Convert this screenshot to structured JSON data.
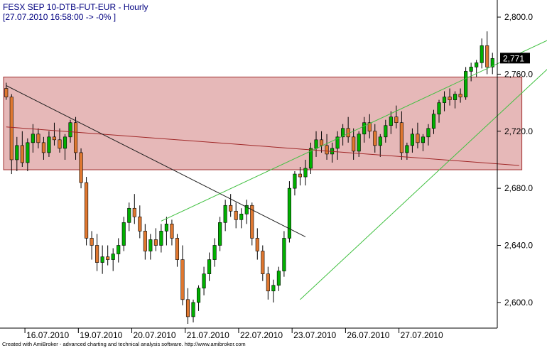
{
  "chart_data": {
    "type": "candlestick",
    "title": "FESX SEP 10-DTB-FUT-EUR - Hourly",
    "subtitle": "[27.07.2010 16:58:00 -> -0% ]",
    "footer": "Created with AmiBroker - advanced charting and technical analysis software. http://www.amibroker.com",
    "last_price_label": "2,771",
    "last_price": 2771,
    "ylim": [
      2582,
      2808
    ],
    "y_ticks": [
      {
        "value": 2600,
        "label": "2,600.0"
      },
      {
        "value": 2640,
        "label": "2,640.0"
      },
      {
        "value": 2680,
        "label": "2,680.0"
      },
      {
        "value": 2720,
        "label": "2,720.0"
      },
      {
        "value": 2760,
        "label": "2,760.0"
      },
      {
        "value": 2800,
        "label": "2,800.0"
      }
    ],
    "x_ticks": [
      "16.07.2010",
      "19.07.2010",
      "20.07.2010",
      "21.07.2010",
      "22.07.2010",
      "23.07.2010",
      "26.07.2010",
      "27.07.2010"
    ],
    "bars_per_day": 10,
    "candles": [
      [
        2750,
        2754,
        2742,
        2744
      ],
      [
        2744,
        2746,
        2690,
        2700
      ],
      [
        2700,
        2716,
        2692,
        2710
      ],
      [
        2710,
        2720,
        2695,
        2698
      ],
      [
        2698,
        2715,
        2692,
        2712
      ],
      [
        2712,
        2725,
        2705,
        2718
      ],
      [
        2718,
        2722,
        2708,
        2712
      ],
      [
        2712,
        2716,
        2700,
        2705
      ],
      [
        2705,
        2720,
        2702,
        2716
      ],
      [
        2716,
        2726,
        2710,
        2714
      ],
      [
        2714,
        2722,
        2705,
        2708
      ],
      [
        2708,
        2718,
        2700,
        2716
      ],
      [
        2716,
        2728,
        2712,
        2726
      ],
      [
        2726,
        2730,
        2700,
        2705
      ],
      [
        2705,
        2708,
        2680,
        2684
      ],
      [
        2684,
        2688,
        2640,
        2645
      ],
      [
        2645,
        2650,
        2630,
        2640
      ],
      [
        2640,
        2648,
        2622,
        2628
      ],
      [
        2628,
        2640,
        2620,
        2632
      ],
      [
        2632,
        2640,
        2626,
        2630
      ],
      [
        2630,
        2638,
        2622,
        2634
      ],
      [
        2634,
        2645,
        2628,
        2640
      ],
      [
        2640,
        2660,
        2636,
        2656
      ],
      [
        2656,
        2670,
        2650,
        2666
      ],
      [
        2666,
        2676,
        2655,
        2660
      ],
      [
        2660,
        2668,
        2645,
        2650
      ],
      [
        2650,
        2655,
        2630,
        2636
      ],
      [
        2636,
        2648,
        2630,
        2644
      ],
      [
        2644,
        2652,
        2636,
        2640
      ],
      [
        2640,
        2655,
        2635,
        2650
      ],
      [
        2650,
        2660,
        2640,
        2655
      ],
      [
        2655,
        2658,
        2640,
        2645
      ],
      [
        2645,
        2648,
        2625,
        2630
      ],
      [
        2630,
        2640,
        2598,
        2602
      ],
      [
        2602,
        2610,
        2585,
        2590
      ],
      [
        2590,
        2602,
        2586,
        2600
      ],
      [
        2600,
        2612,
        2594,
        2610
      ],
      [
        2610,
        2625,
        2605,
        2620
      ],
      [
        2620,
        2635,
        2615,
        2630
      ],
      [
        2630,
        2645,
        2625,
        2640
      ],
      [
        2640,
        2660,
        2636,
        2656
      ],
      [
        2656,
        2672,
        2650,
        2668
      ],
      [
        2668,
        2676,
        2660,
        2664
      ],
      [
        2664,
        2670,
        2652,
        2658
      ],
      [
        2658,
        2666,
        2652,
        2662
      ],
      [
        2662,
        2672,
        2655,
        2668
      ],
      [
        2668,
        2670,
        2640,
        2645
      ],
      [
        2645,
        2652,
        2630,
        2636
      ],
      [
        2636,
        2640,
        2615,
        2620
      ],
      [
        2620,
        2625,
        2602,
        2608
      ],
      [
        2608,
        2616,
        2600,
        2612
      ],
      [
        2612,
        2625,
        2608,
        2622
      ],
      [
        2622,
        2650,
        2618,
        2645
      ],
      [
        2645,
        2685,
        2642,
        2680
      ],
      [
        2680,
        2692,
        2675,
        2690
      ],
      [
        2690,
        2695,
        2682,
        2688
      ],
      [
        2688,
        2700,
        2682,
        2694
      ],
      [
        2694,
        2712,
        2690,
        2708
      ],
      [
        2708,
        2720,
        2702,
        2714
      ],
      [
        2714,
        2720,
        2705,
        2710
      ],
      [
        2710,
        2718,
        2700,
        2704
      ],
      [
        2704,
        2712,
        2698,
        2708
      ],
      [
        2708,
        2720,
        2700,
        2716
      ],
      [
        2716,
        2725,
        2710,
        2722
      ],
      [
        2722,
        2730,
        2712,
        2716
      ],
      [
        2716,
        2722,
        2700,
        2706
      ],
      [
        2706,
        2720,
        2702,
        2718
      ],
      [
        2718,
        2730,
        2712,
        2726
      ],
      [
        2726,
        2732,
        2715,
        2720
      ],
      [
        2720,
        2725,
        2705,
        2710
      ],
      [
        2710,
        2718,
        2702,
        2716
      ],
      [
        2716,
        2728,
        2712,
        2724
      ],
      [
        2724,
        2734,
        2718,
        2730
      ],
      [
        2730,
        2738,
        2722,
        2726
      ],
      [
        2726,
        2734,
        2700,
        2705
      ],
      [
        2705,
        2712,
        2700,
        2710
      ],
      [
        2710,
        2722,
        2705,
        2718
      ],
      [
        2718,
        2726,
        2708,
        2712
      ],
      [
        2712,
        2718,
        2706,
        2716
      ],
      [
        2716,
        2725,
        2710,
        2722
      ],
      [
        2722,
        2735,
        2718,
        2732
      ],
      [
        2732,
        2742,
        2726,
        2740
      ],
      [
        2740,
        2748,
        2734,
        2744
      ],
      [
        2744,
        2750,
        2738,
        2742
      ],
      [
        2742,
        2748,
        2736,
        2746
      ],
      [
        2746,
        2750,
        2740,
        2744
      ],
      [
        2744,
        2765,
        2742,
        2762
      ],
      [
        2762,
        2768,
        2755,
        2765
      ],
      [
        2765,
        2770,
        2758,
        2768
      ],
      [
        2768,
        2785,
        2764,
        2780
      ],
      [
        2780,
        2790,
        2760,
        2765
      ],
      [
        2765,
        2775,
        2760,
        2771
      ]
    ],
    "overlays": [
      {
        "type": "rectangle",
        "x0": 0,
        "x1": 96,
        "y0": 2693,
        "y1": 2758
      },
      {
        "type": "trendline",
        "color": "dark-red",
        "points": [
          [
            0,
            2723
          ],
          [
            96,
            2696
          ]
        ]
      },
      {
        "type": "trendline",
        "color": "black",
        "points": [
          [
            0,
            2752
          ],
          [
            56,
            2646
          ]
        ]
      },
      {
        "type": "trendline",
        "color": "green",
        "points": [
          [
            29,
            2657
          ],
          [
            110,
            2799
          ]
        ]
      },
      {
        "type": "trendline",
        "color": "green",
        "points": [
          [
            55,
            2602
          ],
          [
            110,
            2794
          ]
        ]
      }
    ],
    "colors": {
      "up": "#00b000",
      "down": "#e07830",
      "wick": "#000000",
      "box_fill": "#e6b8b8",
      "box_stroke": "#a03030",
      "trend_red": "#a02828",
      "trend_black": "#202020",
      "trend_green": "#40c040",
      "title": "#000080",
      "price_badge_bg": "#000000",
      "price_badge_fg": "#ffffff"
    }
  }
}
